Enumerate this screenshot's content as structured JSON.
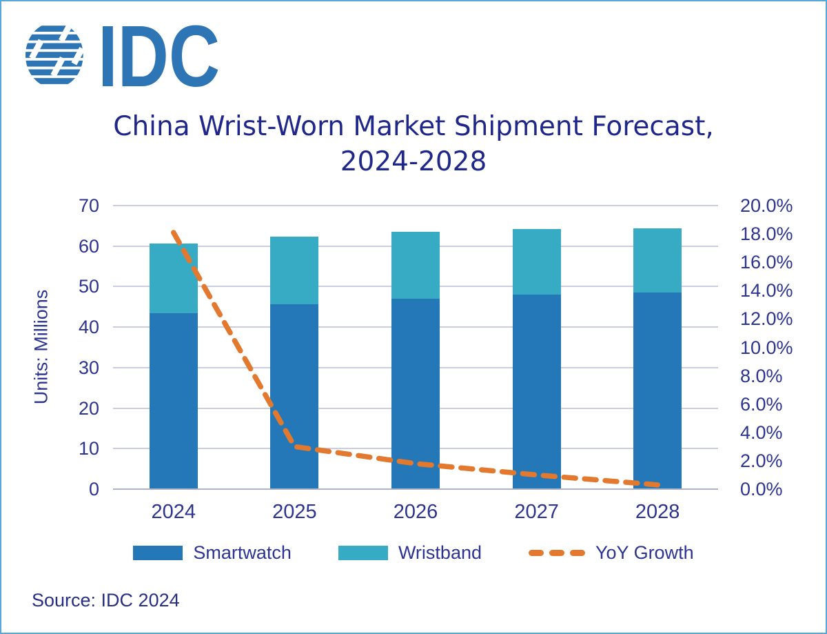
{
  "brand": {
    "logo_text": "IDC",
    "logo_color": "#2e75b5"
  },
  "title": {
    "line1": "China Wrist-Worn Market Shipment Forecast,",
    "line2": "2024-2028"
  },
  "source": "Source: IDC 2024",
  "colors": {
    "smartwatch": "#2478b8",
    "wristband": "#38abc4",
    "yoy_line": "#e2792e",
    "text_navy": "#2c3390",
    "gridline": "#c9cce3",
    "baseline": "#aeb2c8",
    "frame_border": "#57a8d9"
  },
  "chart_data": {
    "type": "bar",
    "subtype": "stacked-bars-with-line",
    "title": "China Wrist-Worn Market Shipment Forecast, 2024-2028",
    "categories": [
      "2024",
      "2025",
      "2026",
      "2027",
      "2028"
    ],
    "series": [
      {
        "name": "Smartwatch",
        "type": "bar",
        "color": "#2478b8",
        "values": [
          43.5,
          45.6,
          47.0,
          48.0,
          48.5
        ]
      },
      {
        "name": "Wristband",
        "type": "bar",
        "color": "#38abc4",
        "values": [
          17.1,
          16.8,
          16.6,
          16.2,
          15.9
        ]
      }
    ],
    "line_series": {
      "name": "YoY Growth",
      "color": "#e2792e",
      "style": "dashed",
      "axis": "right",
      "values_percent": [
        18.1,
        3.0,
        1.8,
        1.0,
        0.3
      ]
    },
    "left_axis": {
      "label": "Units: Millions",
      "min": 0,
      "max": 70,
      "tick_step": 10,
      "ticks": [
        70,
        60,
        50,
        40,
        30,
        20,
        10,
        0
      ]
    },
    "right_axis": {
      "min_percent": 0,
      "max_percent": 20,
      "ticks": [
        "20.0%",
        "18.0%",
        "16.0%",
        "14.0%",
        "12.0%",
        "10.0%",
        "8.0%",
        "6.0%",
        "4.0%",
        "2.0%",
        "0.0%"
      ]
    },
    "grid": true,
    "legend": {
      "position": "bottom",
      "items": [
        {
          "label": "Smartwatch",
          "swatch": "rect",
          "color": "#2478b8"
        },
        {
          "label": "Wristband",
          "swatch": "rect",
          "color": "#38abc4"
        },
        {
          "label": "YoY Growth",
          "swatch": "dashed-line",
          "color": "#e2792e"
        }
      ]
    }
  }
}
